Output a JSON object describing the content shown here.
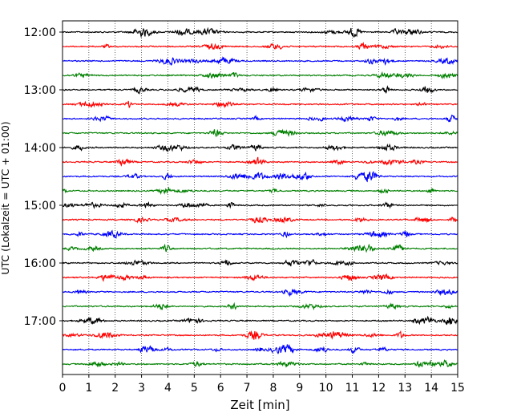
{
  "chart_data": {
    "type": "line",
    "title": "",
    "xlabel": "Zeit  [min]",
    "ylabel": "UTC (Lokalzeit = UTC + 01:00)",
    "xlim": [
      0,
      15
    ],
    "x_ticks": [
      0,
      1,
      2,
      3,
      4,
      5,
      6,
      7,
      8,
      9,
      10,
      11,
      12,
      13,
      14,
      15
    ],
    "y_tick_labels": [
      "12:00",
      "13:00",
      "14:00",
      "15:00",
      "16:00",
      "17:00"
    ],
    "grid": {
      "x": true,
      "y": false,
      "style": "dotted"
    },
    "trace_start": "12:00",
    "trace_interval_min": 15,
    "trace_count": 24,
    "trace_colors": [
      "#000000",
      "#ff0000",
      "#0000ff",
      "#008000"
    ]
  }
}
